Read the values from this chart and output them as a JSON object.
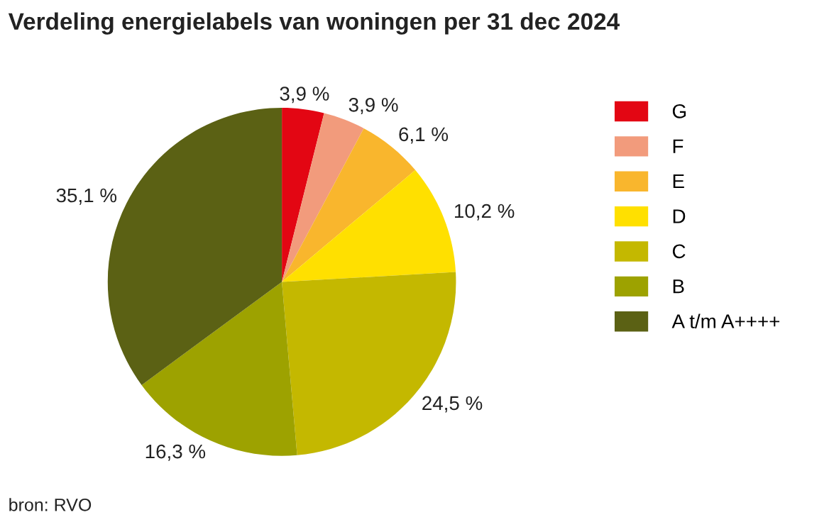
{
  "chart_data": {
    "type": "pie",
    "title": "Verdeling energielabels van woningen per 31 dec 2024",
    "categories": [
      "G",
      "F",
      "E",
      "D",
      "C",
      "B",
      "A t/m A++++"
    ],
    "values": [
      3.9,
      3.9,
      6.1,
      10.2,
      24.5,
      16.3,
      35.1
    ],
    "value_labels": [
      "3,9 %",
      "3,9 %",
      "6,1 %",
      "10,2 %",
      "24,5 %",
      "16,3 %",
      "35,1 %"
    ],
    "colors": [
      "#e30613",
      "#f29b7c",
      "#f9b62d",
      "#ffe000",
      "#c4b800",
      "#9da200",
      "#5b6114"
    ],
    "legend": "right",
    "annotations": [
      "bron: RVO"
    ]
  }
}
